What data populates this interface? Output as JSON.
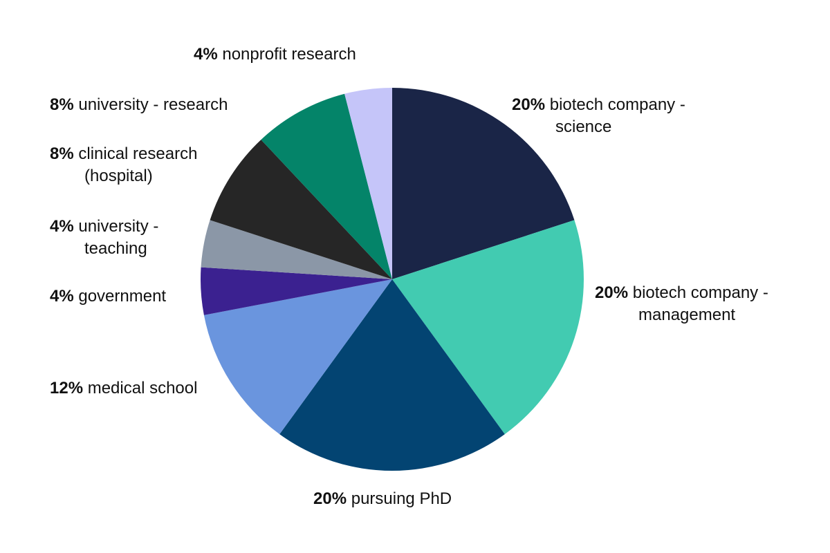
{
  "chart_data": {
    "type": "pie",
    "title": "",
    "unit": "%",
    "start": "12 o'clock, clockwise",
    "slices": [
      {
        "id": "biotech-science",
        "value": 20,
        "pct_label": "20%",
        "label_line1": "biotech company -",
        "label_line2": "science",
        "color": "#1a2547"
      },
      {
        "id": "biotech-management",
        "value": 20,
        "pct_label": "20%",
        "label_line1": "biotech company -",
        "label_line2": "management",
        "color": "#42cbb1"
      },
      {
        "id": "phd",
        "value": 20,
        "pct_label": "20%",
        "label_line1": "pursuing PhD",
        "label_line2": "",
        "color": "#034472"
      },
      {
        "id": "medical-school",
        "value": 12,
        "pct_label": "12%",
        "label_line1": "medical school",
        "label_line2": "",
        "color": "#6a95de"
      },
      {
        "id": "government",
        "value": 4,
        "pct_label": "4%",
        "label_line1": "government",
        "label_line2": "",
        "color": "#3b2190"
      },
      {
        "id": "university-teaching",
        "value": 4,
        "pct_label": "4%",
        "label_line1": "university -",
        "label_line2": "teaching",
        "color": "#8b97a7"
      },
      {
        "id": "clinical-research",
        "value": 8,
        "pct_label": "8%",
        "label_line1": "clinical research",
        "label_line2": "(hospital)",
        "color": "#262626"
      },
      {
        "id": "university-research",
        "value": 8,
        "pct_label": "8%",
        "label_line1": "university - research",
        "label_line2": "",
        "color": "#048469"
      },
      {
        "id": "nonprofit-research",
        "value": 4,
        "pct_label": "4%",
        "label_line1": "nonprofit research",
        "label_line2": "",
        "color": "#c5c5f9"
      }
    ]
  }
}
